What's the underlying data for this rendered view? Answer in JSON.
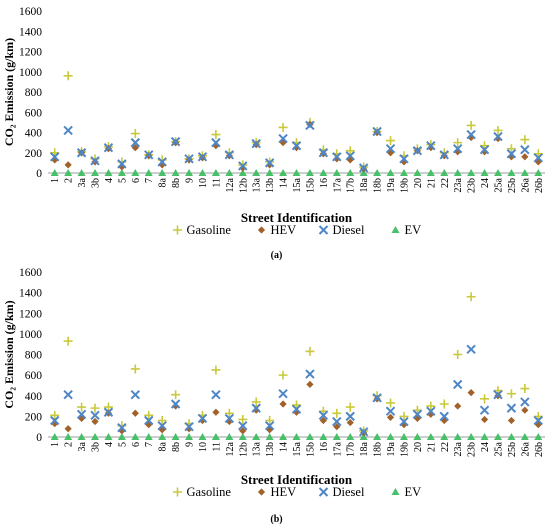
{
  "legend_labels": {
    "gasoline": "Gasoline",
    "hev": "HEV",
    "diesel": "Diesel",
    "ev": "EV"
  },
  "colors": {
    "gasoline": "#c9c93a",
    "hev": "#a0622a",
    "diesel": "#4f86c6",
    "ev": "#48c06a",
    "axis": "#9e9e9e",
    "text": "#000000"
  },
  "chart_data": [
    {
      "type": "scatter",
      "caption": "(a)",
      "title": "",
      "xlabel": "Street Identification",
      "ylabel": "CO₂ Emission (g/km)",
      "ylim": [
        0,
        1600
      ],
      "yticks": [
        0,
        200,
        400,
        600,
        800,
        1000,
        1200,
        1400,
        1600
      ],
      "grid": false,
      "legend_position": "bottom",
      "categories": [
        "1",
        "2",
        "3a",
        "3b",
        "4",
        "5",
        "6",
        "7",
        "8a",
        "8b",
        "9",
        "10",
        "11",
        "12a",
        "12b",
        "13a",
        "13b",
        "14",
        "15a",
        "15b",
        "16",
        "17a",
        "17b",
        "18a",
        "18b",
        "19a",
        "19b",
        "20",
        "21",
        "22",
        "23a",
        "23b",
        "24",
        "25a",
        "25b",
        "26a",
        "26b"
      ],
      "series": [
        {
          "name": "Gasoline",
          "key": "gasoline",
          "marker": "plus",
          "values": [
            200,
            960,
            210,
            140,
            260,
            110,
            390,
            180,
            130,
            310,
            140,
            170,
            380,
            200,
            80,
            300,
            110,
            450,
            300,
            500,
            230,
            190,
            220,
            60,
            410,
            320,
            170,
            240,
            280,
            200,
            300,
            470,
            270,
            420,
            240,
            330,
            190
          ]
        },
        {
          "name": "HEV",
          "key": "hev",
          "marker": "diamond",
          "values": [
            130,
            80,
            200,
            110,
            240,
            60,
            250,
            170,
            80,
            300,
            130,
            150,
            270,
            170,
            50,
            280,
            80,
            300,
            250,
            480,
            190,
            140,
            130,
            40,
            400,
            200,
            110,
            220,
            250,
            170,
            210,
            350,
            210,
            340,
            160,
            160,
            110
          ]
        },
        {
          "name": "Diesel",
          "key": "diesel",
          "marker": "x",
          "values": [
            160,
            420,
            200,
            120,
            250,
            90,
            300,
            180,
            110,
            310,
            140,
            160,
            300,
            180,
            70,
            290,
            100,
            340,
            270,
            470,
            200,
            160,
            170,
            50,
            410,
            240,
            140,
            220,
            270,
            180,
            240,
            380,
            230,
            360,
            190,
            230,
            150
          ]
        },
        {
          "name": "EV",
          "key": "ev",
          "marker": "triangle",
          "values": [
            0,
            0,
            0,
            0,
            0,
            0,
            0,
            0,
            0,
            0,
            0,
            0,
            0,
            0,
            0,
            0,
            0,
            0,
            0,
            0,
            0,
            0,
            0,
            0,
            0,
            0,
            0,
            0,
            0,
            0,
            0,
            0,
            0,
            0,
            0,
            0,
            0
          ]
        }
      ]
    },
    {
      "type": "scatter",
      "caption": "(b)",
      "title": "",
      "xlabel": "Street Identification",
      "ylabel": "CO₂ Emission (g/km)",
      "ylim": [
        0,
        1600
      ],
      "yticks": [
        0,
        200,
        400,
        600,
        800,
        1000,
        1200,
        1400,
        1600
      ],
      "grid": false,
      "legend_position": "bottom",
      "categories": [
        "1",
        "2",
        "3a",
        "3b",
        "4",
        "5",
        "6",
        "7",
        "8a",
        "8b",
        "9",
        "10",
        "11",
        "12a",
        "12b",
        "13a",
        "13b",
        "14",
        "15a",
        "15b",
        "16",
        "17a",
        "17b",
        "18a",
        "18b",
        "19a",
        "19b",
        "20",
        "21",
        "22",
        "23a",
        "23b",
        "24",
        "25a",
        "25b",
        "26a",
        "26b"
      ],
      "series": [
        {
          "name": "Gasoline",
          "key": "gasoline",
          "marker": "plus",
          "values": [
            210,
            930,
            290,
            280,
            290,
            110,
            660,
            210,
            160,
            410,
            130,
            210,
            650,
            230,
            170,
            340,
            160,
            600,
            310,
            830,
            250,
            230,
            290,
            60,
            400,
            330,
            200,
            260,
            300,
            320,
            800,
            1360,
            370,
            450,
            420,
            470,
            200
          ]
        },
        {
          "name": "HEV",
          "key": "hev",
          "marker": "diamond",
          "values": [
            130,
            80,
            180,
            150,
            230,
            60,
            230,
            120,
            70,
            300,
            80,
            160,
            240,
            150,
            60,
            260,
            70,
            320,
            240,
            510,
            160,
            100,
            140,
            40,
            370,
            190,
            120,
            180,
            220,
            160,
            300,
            430,
            170,
            400,
            160,
            260,
            120
          ]
        },
        {
          "name": "Diesel",
          "key": "diesel",
          "marker": "x",
          "values": [
            160,
            410,
            220,
            210,
            240,
            90,
            410,
            160,
            110,
            320,
            100,
            180,
            410,
            180,
            110,
            280,
            110,
            420,
            270,
            610,
            210,
            150,
            200,
            50,
            380,
            250,
            150,
            220,
            250,
            200,
            510,
            850,
            260,
            410,
            280,
            340,
            160
          ]
        },
        {
          "name": "EV",
          "key": "ev",
          "marker": "triangle",
          "values": [
            0,
            0,
            0,
            0,
            0,
            0,
            0,
            0,
            0,
            0,
            0,
            0,
            0,
            0,
            0,
            0,
            0,
            0,
            0,
            0,
            0,
            0,
            0,
            0,
            0,
            0,
            0,
            0,
            0,
            0,
            0,
            0,
            0,
            0,
            0,
            0,
            0
          ]
        }
      ]
    }
  ]
}
